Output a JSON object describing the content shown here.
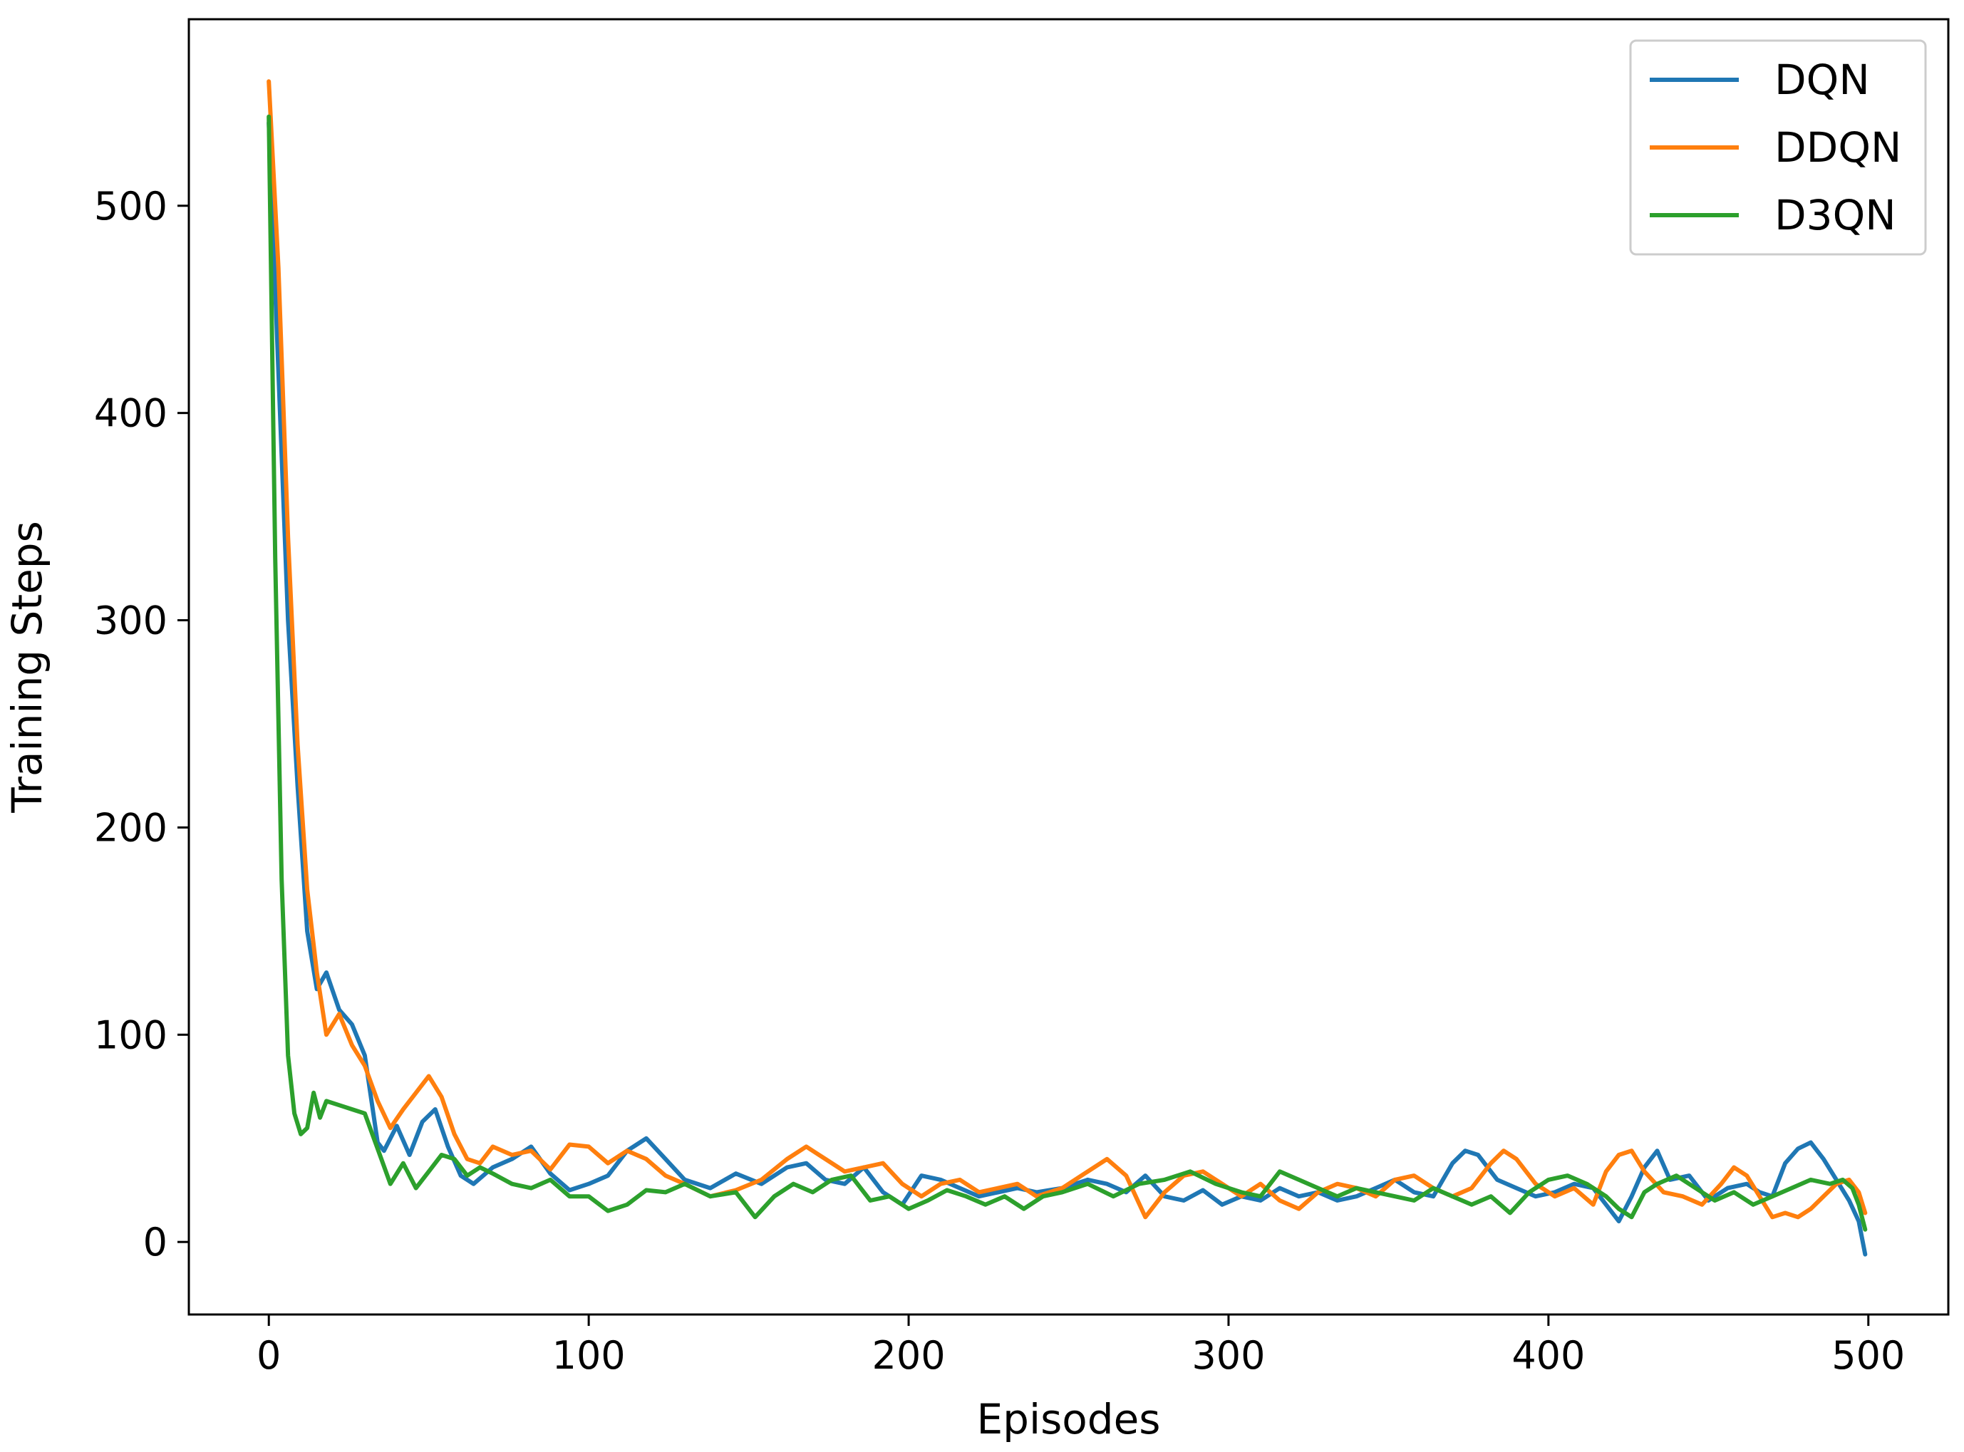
{
  "chart_data": {
    "type": "line",
    "title": "",
    "xlabel": "Episodes",
    "ylabel": "Training Steps",
    "xlim": [
      -25,
      525
    ],
    "ylim": [
      -35,
      590
    ],
    "xticks": [
      0,
      100,
      200,
      300,
      400,
      500
    ],
    "yticks": [
      0,
      100,
      200,
      300,
      400,
      500
    ],
    "xtick_labels": [
      "0",
      "100",
      "200",
      "300",
      "400",
      "500"
    ],
    "ytick_labels": [
      "0",
      "100",
      "200",
      "300",
      "400",
      "500"
    ],
    "grid": false,
    "legend": "top-right",
    "series": [
      {
        "name": "DQN",
        "color": "#1f77b4",
        "x": [
          0,
          3,
          6,
          9,
          12,
          15,
          18,
          22,
          26,
          30,
          34,
          36,
          40,
          44,
          48,
          52,
          56,
          60,
          64,
          70,
          76,
          82,
          88,
          94,
          100,
          106,
          112,
          118,
          124,
          130,
          138,
          146,
          154,
          162,
          168,
          174,
          180,
          186,
          192,
          198,
          204,
          210,
          216,
          222,
          228,
          234,
          240,
          248,
          256,
          262,
          268,
          274,
          280,
          286,
          292,
          298,
          304,
          310,
          316,
          322,
          328,
          334,
          340,
          346,
          352,
          358,
          364,
          370,
          374,
          378,
          384,
          390,
          396,
          402,
          408,
          414,
          418,
          422,
          426,
          430,
          434,
          438,
          444,
          450,
          456,
          462,
          466,
          470,
          474,
          478,
          482,
          486,
          490,
          494,
          497,
          499
        ],
        "y": [
          540,
          420,
          300,
          220,
          150,
          122,
          130,
          112,
          105,
          90,
          48,
          44,
          56,
          42,
          58,
          64,
          46,
          32,
          28,
          36,
          40,
          46,
          33,
          25,
          28,
          32,
          44,
          50,
          40,
          30,
          26,
          33,
          28,
          36,
          38,
          30,
          28,
          36,
          24,
          18,
          32,
          30,
          26,
          22,
          24,
          26,
          24,
          26,
          30,
          28,
          24,
          32,
          22,
          20,
          25,
          18,
          22,
          20,
          26,
          22,
          24,
          20,
          22,
          26,
          30,
          24,
          22,
          38,
          44,
          42,
          30,
          26,
          22,
          24,
          28,
          26,
          18,
          10,
          22,
          36,
          44,
          30,
          32,
          20,
          26,
          28,
          24,
          22,
          38,
          45,
          48,
          40,
          30,
          20,
          10,
          -6
        ]
      },
      {
        "name": "DDQN",
        "color": "#ff7f0e",
        "x": [
          0,
          3,
          6,
          9,
          12,
          15,
          18,
          22,
          26,
          30,
          34,
          38,
          42,
          46,
          50,
          54,
          58,
          62,
          66,
          70,
          76,
          82,
          88,
          94,
          100,
          106,
          112,
          118,
          124,
          130,
          138,
          146,
          154,
          162,
          168,
          174,
          180,
          186,
          192,
          198,
          204,
          210,
          216,
          222,
          228,
          234,
          240,
          248,
          256,
          262,
          268,
          274,
          280,
          286,
          292,
          298,
          304,
          310,
          316,
          322,
          328,
          334,
          340,
          346,
          352,
          358,
          364,
          370,
          376,
          382,
          386,
          390,
          396,
          402,
          408,
          414,
          418,
          422,
          426,
          430,
          436,
          442,
          448,
          454,
          458,
          462,
          466,
          470,
          474,
          478,
          482,
          486,
          490,
          494,
          497,
          499
        ],
        "y": [
          560,
          470,
          340,
          240,
          170,
          130,
          100,
          110,
          95,
          85,
          68,
          55,
          64,
          72,
          80,
          70,
          52,
          40,
          38,
          46,
          42,
          44,
          35,
          47,
          46,
          38,
          44,
          40,
          32,
          28,
          22,
          25,
          30,
          40,
          46,
          40,
          34,
          36,
          38,
          28,
          22,
          28,
          30,
          24,
          26,
          28,
          22,
          26,
          34,
          40,
          32,
          12,
          24,
          32,
          34,
          28,
          22,
          28,
          20,
          16,
          24,
          28,
          26,
          22,
          30,
          32,
          26,
          22,
          26,
          38,
          44,
          40,
          28,
          22,
          26,
          18,
          34,
          42,
          44,
          34,
          24,
          22,
          18,
          28,
          36,
          32,
          22,
          12,
          14,
          12,
          16,
          22,
          28,
          30,
          24,
          14
        ]
      },
      {
        "name": "D3QN",
        "color": "#2ca02c",
        "x": [
          0,
          2,
          4,
          6,
          8,
          10,
          12,
          14,
          16,
          18,
          22,
          26,
          30,
          34,
          38,
          42,
          46,
          50,
          54,
          58,
          62,
          66,
          70,
          76,
          82,
          88,
          94,
          100,
          106,
          112,
          118,
          124,
          130,
          138,
          146,
          152,
          158,
          164,
          170,
          176,
          182,
          188,
          194,
          200,
          206,
          212,
          218,
          224,
          230,
          236,
          242,
          248,
          256,
          264,
          272,
          280,
          288,
          296,
          304,
          310,
          316,
          322,
          328,
          334,
          340,
          346,
          352,
          358,
          364,
          370,
          376,
          382,
          388,
          394,
          400,
          406,
          412,
          418,
          422,
          426,
          430,
          434,
          440,
          446,
          452,
          458,
          464,
          470,
          476,
          482,
          488,
          492,
          495,
          497,
          499
        ],
        "y": [
          543,
          330,
          175,
          90,
          62,
          52,
          55,
          72,
          60,
          68,
          66,
          64,
          62,
          45,
          28,
          38,
          26,
          34,
          42,
          40,
          32,
          36,
          33,
          28,
          26,
          30,
          22,
          22,
          15,
          18,
          25,
          24,
          28,
          22,
          24,
          12,
          22,
          28,
          24,
          30,
          32,
          20,
          22,
          16,
          20,
          25,
          22,
          18,
          22,
          16,
          22,
          24,
          28,
          22,
          28,
          30,
          34,
          28,
          24,
          22,
          34,
          30,
          26,
          22,
          26,
          24,
          22,
          20,
          26,
          22,
          18,
          22,
          14,
          24,
          30,
          32,
          28,
          22,
          16,
          12,
          24,
          28,
          32,
          26,
          20,
          24,
          18,
          22,
          26,
          30,
          28,
          30,
          26,
          18,
          6
        ]
      }
    ]
  }
}
